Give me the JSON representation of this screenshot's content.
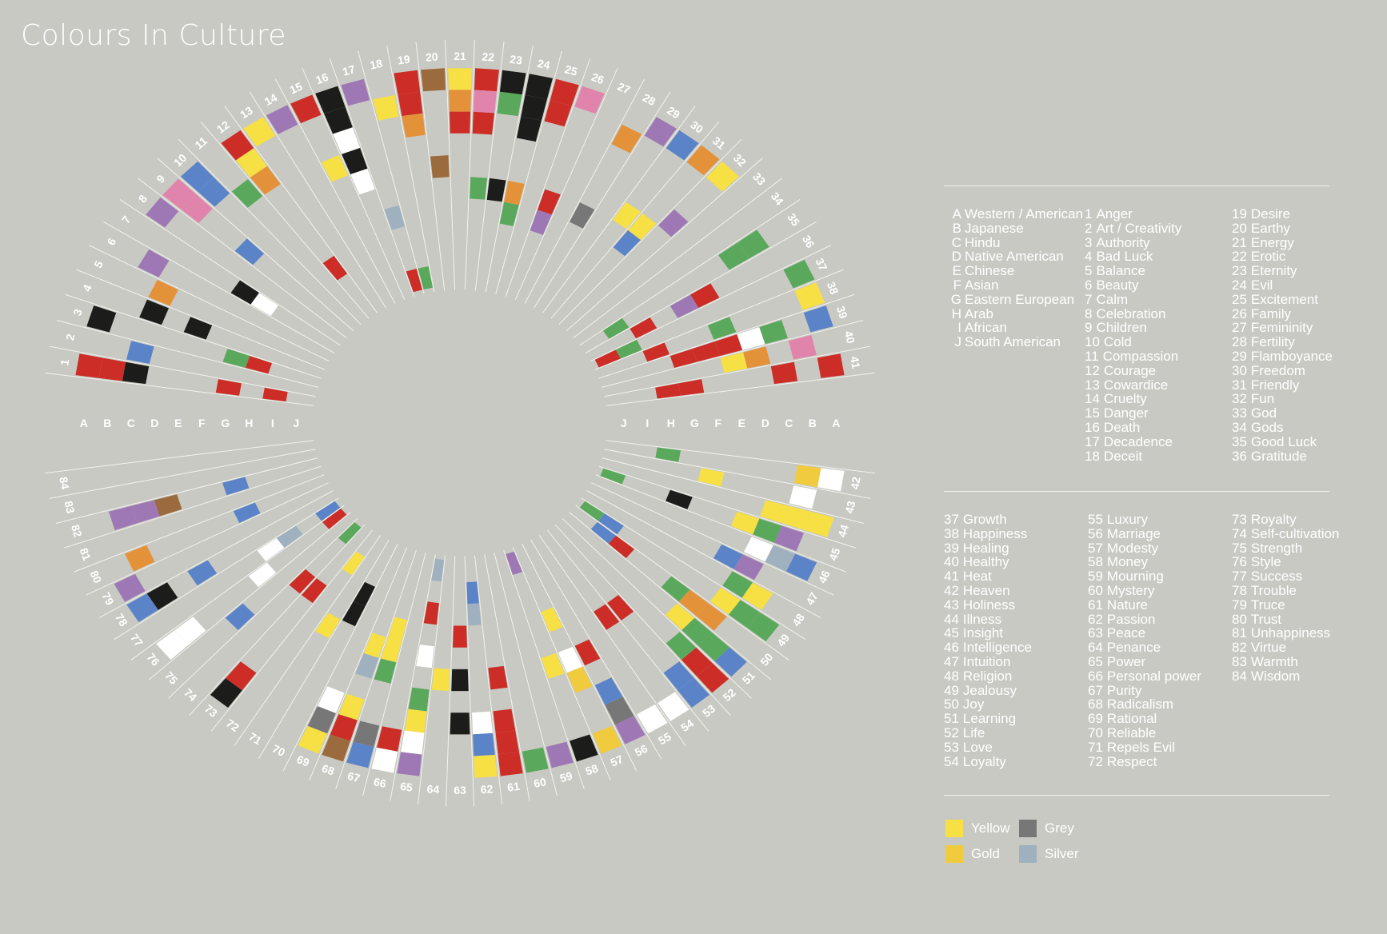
{
  "title": "Colours In Culture",
  "colors": {
    "red": "#cc2d27",
    "yellow": "#f6e044",
    "gold": "#f0cb3d",
    "orange": "#e4923a",
    "black": "#1c1c1a",
    "white": "#ffffff",
    "purple": "#9d78b4",
    "blue": "#5b84c8",
    "green": "#5aa85c",
    "pink": "#e084ac",
    "brown": "#9b6b3d",
    "grey": "#777777",
    "silver": "#9fb0bf"
  },
  "cultures": [
    {
      "code": "A",
      "name": "Western / American"
    },
    {
      "code": "B",
      "name": "Japanese"
    },
    {
      "code": "C",
      "name": "Hindu"
    },
    {
      "code": "D",
      "name": "Native American"
    },
    {
      "code": "E",
      "name": "Chinese"
    },
    {
      "code": "F",
      "name": "Asian"
    },
    {
      "code": "G",
      "name": "Eastern European"
    },
    {
      "code": "H",
      "name": "Arab"
    },
    {
      "code": "I",
      "name": "African"
    },
    {
      "code": "J",
      "name": "South American"
    }
  ],
  "meanings": [
    "Anger",
    "Art / Creativity",
    "Authority",
    "Bad Luck",
    "Balance",
    "Beauty",
    "Calm",
    "Celebration",
    "Children",
    "Cold",
    "Compassion",
    "Courage",
    "Cowardice",
    "Cruelty",
    "Danger",
    "Death",
    "Decadence",
    "Deceit",
    "Desire",
    "Earthy",
    "Energy",
    "Erotic",
    "Eternity",
    "Evil",
    "Excitement",
    "Family",
    "Femininity",
    "Fertility",
    "Flamboyance",
    "Freedom",
    "Friendly",
    "Fun",
    "God",
    "Gods",
    "Good Luck",
    "Gratitude",
    "Growth",
    "Happiness",
    "Healing",
    "Healthy",
    "Heat",
    "Heaven",
    "Holiness",
    "Illness",
    "Insight",
    "Intelligence",
    "Intuition",
    "Religion",
    "Jealousy",
    "Joy",
    "Learning",
    "Life",
    "Love",
    "Loyalty",
    "Luxury",
    "Marriage",
    "Modesty",
    "Money",
    "Mourning",
    "Mystery",
    "Nature",
    "Passion",
    "Peace",
    "Penance",
    "Power",
    "Personal power",
    "Purity",
    "Radicalism",
    "Rational",
    "Reliable",
    "Repels Evil",
    "Respect",
    "Royalty",
    "Self-cultivation",
    "Strength",
    "Style",
    "Success",
    "Trouble",
    "Truce",
    "Trust",
    "Unhappiness",
    "Virtue",
    "Warmth",
    "Wisdom"
  ],
  "color_legend": [
    {
      "label": "Yellow",
      "color": "#f6e044"
    },
    {
      "label": "Grey",
      "color": "#777777"
    },
    {
      "label": "Gold",
      "color": "#f0cb3d"
    },
    {
      "label": "Silver",
      "color": "#9fb0bf"
    }
  ],
  "cells": [
    {
      "m": 1,
      "c": "A",
      "col": "red"
    },
    {
      "m": 1,
      "c": "B",
      "col": "red"
    },
    {
      "m": 1,
      "c": "C",
      "col": "black"
    },
    {
      "m": 1,
      "c": "G",
      "col": "red"
    },
    {
      "m": 1,
      "c": "I",
      "col": "red"
    },
    {
      "m": 2,
      "c": "C",
      "col": "blue"
    },
    {
      "m": 3,
      "c": "A",
      "col": "black"
    },
    {
      "m": 3,
      "c": "G",
      "col": "green"
    },
    {
      "m": 3,
      "c": "H",
      "col": "red"
    },
    {
      "m": 4,
      "c": "C",
      "col": "black"
    },
    {
      "m": 4,
      "c": "E",
      "col": "black"
    },
    {
      "m": 5,
      "c": "C",
      "col": "orange"
    },
    {
      "m": 6,
      "c": "B",
      "col": "purple"
    },
    {
      "m": 7,
      "c": "F",
      "col": "black"
    },
    {
      "m": 7,
      "c": "G",
      "col": "white"
    },
    {
      "m": 8,
      "c": "A",
      "col": "purple"
    },
    {
      "m": 9,
      "c": "A",
      "col": "pink"
    },
    {
      "m": 9,
      "c": "B",
      "col": "pink"
    },
    {
      "m": 9,
      "c": "E",
      "col": "blue"
    },
    {
      "m": 10,
      "c": "A",
      "col": "blue"
    },
    {
      "m": 10,
      "c": "B",
      "col": "blue"
    },
    {
      "m": 11,
      "c": "C",
      "col": "green"
    },
    {
      "m": 12,
      "c": "A",
      "col": "red"
    },
    {
      "m": 12,
      "c": "B",
      "col": "yellow"
    },
    {
      "m": 12,
      "c": "C",
      "col": "orange"
    },
    {
      "m": 12,
      "c": "H",
      "col": "red"
    },
    {
      "m": 13,
      "c": "A",
      "col": "yellow"
    },
    {
      "m": 14,
      "c": "A",
      "col": "purple"
    },
    {
      "m": 15,
      "c": "A",
      "col": "red"
    },
    {
      "m": 15,
      "c": "D",
      "col": "yellow"
    },
    {
      "m": 16,
      "c": "A",
      "col": "black"
    },
    {
      "m": 16,
      "c": "B",
      "col": "black"
    },
    {
      "m": 16,
      "c": "C",
      "col": "white"
    },
    {
      "m": 16,
      "c": "D",
      "col": "black"
    },
    {
      "m": 16,
      "c": "E",
      "col": "white"
    },
    {
      "m": 17,
      "c": "A",
      "col": "purple"
    },
    {
      "m": 17,
      "c": "G",
      "col": "silver"
    },
    {
      "m": 17,
      "c": "J",
      "col": "red"
    },
    {
      "m": 18,
      "c": "B",
      "col": "yellow"
    },
    {
      "m": 18,
      "c": "J",
      "col": "green"
    },
    {
      "m": 19,
      "c": "A",
      "col": "red"
    },
    {
      "m": 19,
      "c": "B",
      "col": "red"
    },
    {
      "m": 19,
      "c": "C",
      "col": "orange"
    },
    {
      "m": 20,
      "c": "A",
      "col": "brown"
    },
    {
      "m": 20,
      "c": "E",
      "col": "brown"
    },
    {
      "m": 21,
      "c": "A",
      "col": "yellow"
    },
    {
      "m": 21,
      "c": "B",
      "col": "orange"
    },
    {
      "m": 21,
      "c": "C",
      "col": "red"
    },
    {
      "m": 22,
      "c": "A",
      "col": "red"
    },
    {
      "m": 22,
      "c": "B",
      "col": "pink"
    },
    {
      "m": 22,
      "c": "C",
      "col": "red"
    },
    {
      "m": 22,
      "c": "F",
      "col": "green"
    },
    {
      "m": 23,
      "c": "A",
      "col": "black"
    },
    {
      "m": 23,
      "c": "B",
      "col": "green"
    },
    {
      "m": 23,
      "c": "F",
      "col": "black"
    },
    {
      "m": 24,
      "c": "A",
      "col": "black"
    },
    {
      "m": 24,
      "c": "B",
      "col": "black"
    },
    {
      "m": 24,
      "c": "C",
      "col": "black"
    },
    {
      "m": 24,
      "c": "F",
      "col": "orange"
    },
    {
      "m": 24,
      "c": "G",
      "col": "green"
    },
    {
      "m": 25,
      "c": "A",
      "col": "red"
    },
    {
      "m": 25,
      "c": "B",
      "col": "red"
    },
    {
      "m": 26,
      "c": "A",
      "col": "pink"
    },
    {
      "m": 26,
      "c": "F",
      "col": "red"
    },
    {
      "m": 26,
      "c": "G",
      "col": "purple"
    },
    {
      "m": 28,
      "c": "B",
      "col": "orange"
    },
    {
      "m": 28,
      "c": "F",
      "col": "grey"
    },
    {
      "m": 29,
      "c": "A",
      "col": "purple"
    },
    {
      "m": 30,
      "c": "A",
      "col": "blue"
    },
    {
      "m": 30,
      "c": "E",
      "col": "yellow"
    },
    {
      "m": 31,
      "c": "A",
      "col": "orange"
    },
    {
      "m": 31,
      "c": "E",
      "col": "yellow"
    },
    {
      "m": 31,
      "c": "F",
      "col": "blue"
    },
    {
      "m": 32,
      "c": "A",
      "col": "yellow"
    },
    {
      "m": 32,
      "c": "D",
      "col": "purple"
    },
    {
      "m": 35,
      "c": "B",
      "col": "green"
    },
    {
      "m": 35,
      "c": "C",
      "col": "green"
    },
    {
      "m": 35,
      "c": "I",
      "col": "green"
    },
    {
      "m": 36,
      "c": "E",
      "col": "red"
    },
    {
      "m": 36,
      "c": "F",
      "col": "purple"
    },
    {
      "m": 36,
      "c": "H",
      "col": "red"
    },
    {
      "m": 37,
      "c": "A",
      "col": "green"
    },
    {
      "m": 37,
      "c": "I",
      "col": "green"
    },
    {
      "m": 37,
      "c": "J",
      "col": "red"
    },
    {
      "m": 38,
      "c": "A",
      "col": "yellow"
    },
    {
      "m": 38,
      "c": "E",
      "col": "green"
    },
    {
      "m": 38,
      "c": "H",
      "col": "red"
    },
    {
      "m": 39,
      "c": "A",
      "col": "blue"
    },
    {
      "m": 39,
      "c": "C",
      "col": "green"
    },
    {
      "m": 39,
      "c": "D",
      "col": "white"
    },
    {
      "m": 39,
      "c": "E",
      "col": "red"
    },
    {
      "m": 39,
      "c": "F",
      "col": "red"
    },
    {
      "m": 39,
      "c": "G",
      "col": "red"
    },
    {
      "m": 40,
      "c": "B",
      "col": "pink"
    },
    {
      "m": 40,
      "c": "D",
      "col": "orange"
    },
    {
      "m": 40,
      "c": "E",
      "col": "yellow"
    },
    {
      "m": 41,
      "c": "A",
      "col": "red"
    },
    {
      "m": 41,
      "c": "C",
      "col": "red"
    },
    {
      "m": 41,
      "c": "G",
      "col": "red"
    },
    {
      "m": 41,
      "c": "H",
      "col": "red"
    },
    {
      "m": 42,
      "c": "A",
      "col": "white"
    },
    {
      "m": 42,
      "c": "B",
      "col": "gold"
    },
    {
      "m": 42,
      "c": "H",
      "col": "green"
    },
    {
      "m": 43,
      "c": "B",
      "col": "white"
    },
    {
      "m": 43,
      "c": "F",
      "col": "yellow"
    },
    {
      "m": 44,
      "c": "A",
      "col": "yellow"
    },
    {
      "m": 44,
      "c": "B",
      "col": "yellow"
    },
    {
      "m": 44,
      "c": "C",
      "col": "yellow"
    },
    {
      "m": 45,
      "c": "B",
      "col": "purple"
    },
    {
      "m": 45,
      "c": "C",
      "col": "green"
    },
    {
      "m": 45,
      "c": "D",
      "col": "yellow"
    },
    {
      "m": 45,
      "c": "G",
      "col": "black"
    },
    {
      "m": 45,
      "c": "J",
      "col": "green"
    },
    {
      "m": 46,
      "c": "A",
      "col": "blue"
    },
    {
      "m": 46,
      "c": "B",
      "col": "silver"
    },
    {
      "m": 46,
      "c": "C",
      "col": "white"
    },
    {
      "m": 47,
      "c": "C",
      "col": "purple"
    },
    {
      "m": 47,
      "c": "D",
      "col": "blue"
    },
    {
      "m": 48,
      "c": "B",
      "col": "yellow"
    },
    {
      "m": 48,
      "c": "C",
      "col": "green"
    },
    {
      "m": 49,
      "c": "A",
      "col": "green"
    },
    {
      "m": 49,
      "c": "B",
      "col": "green"
    },
    {
      "m": 49,
      "c": "C",
      "col": "yellow"
    },
    {
      "m": 49,
      "c": "I",
      "col": "blue"
    },
    {
      "m": 49,
      "c": "J",
      "col": "green"
    },
    {
      "m": 50,
      "c": "C",
      "col": "orange"
    },
    {
      "m": 50,
      "c": "D",
      "col": "orange"
    },
    {
      "m": 50,
      "c": "E",
      "col": "green"
    },
    {
      "m": 50,
      "c": "H",
      "col": "red"
    },
    {
      "m": 50,
      "c": "I",
      "col": "blue"
    },
    {
      "m": 51,
      "c": "A",
      "col": "blue"
    },
    {
      "m": 51,
      "c": "B",
      "col": "green"
    },
    {
      "m": 51,
      "c": "C",
      "col": "green"
    },
    {
      "m": 51,
      "c": "D",
      "col": "yellow"
    },
    {
      "m": 52,
      "c": "A",
      "col": "red"
    },
    {
      "m": 52,
      "c": "B",
      "col": "red"
    },
    {
      "m": 52,
      "c": "C",
      "col": "green"
    },
    {
      "m": 53,
      "c": "A",
      "col": "blue"
    },
    {
      "m": 53,
      "c": "B",
      "col": "blue"
    },
    {
      "m": 53,
      "c": "F",
      "col": "red"
    },
    {
      "m": 54,
      "c": "A",
      "col": "white"
    },
    {
      "m": 54,
      "c": "F",
      "col": "red"
    },
    {
      "m": 55,
      "c": "A",
      "col": "white"
    },
    {
      "m": 56,
      "c": "A",
      "col": "purple"
    },
    {
      "m": 56,
      "c": "B",
      "col": "grey"
    },
    {
      "m": 56,
      "c": "C",
      "col": "blue"
    },
    {
      "m": 56,
      "c": "E",
      "col": "red"
    },
    {
      "m": 57,
      "c": "A",
      "col": "gold"
    },
    {
      "m": 57,
      "c": "D",
      "col": "gold"
    },
    {
      "m": 57,
      "c": "E",
      "col": "white"
    },
    {
      "m": 57,
      "c": "G",
      "col": "yellow"
    },
    {
      "m": 58,
      "c": "A",
      "col": "black"
    },
    {
      "m": 58,
      "c": "E",
      "col": "yellow"
    },
    {
      "m": 58,
      "c": "J",
      "col": "purple"
    },
    {
      "m": 59,
      "c": "A",
      "col": "purple"
    },
    {
      "m": 60,
      "c": "A",
      "col": "green"
    },
    {
      "m": 61,
      "c": "A",
      "col": "red"
    },
    {
      "m": 61,
      "c": "B",
      "col": "red"
    },
    {
      "m": 61,
      "c": "C",
      "col": "red"
    },
    {
      "m": 61,
      "c": "E",
      "col": "red"
    },
    {
      "m": 62,
      "c": "A",
      "col": "yellow"
    },
    {
      "m": 62,
      "c": "B",
      "col": "blue"
    },
    {
      "m": 62,
      "c": "C",
      "col": "white"
    },
    {
      "m": 62,
      "c": "H",
      "col": "silver"
    },
    {
      "m": 62,
      "c": "I",
      "col": "blue"
    },
    {
      "m": 63,
      "c": "C",
      "col": "black"
    },
    {
      "m": 63,
      "c": "E",
      "col": "black"
    },
    {
      "m": 63,
      "c": "G",
      "col": "red"
    },
    {
      "m": 64,
      "c": "E",
      "col": "yellow"
    },
    {
      "m": 65,
      "c": "A",
      "col": "purple"
    },
    {
      "m": 65,
      "c": "B",
      "col": "white"
    },
    {
      "m": 65,
      "c": "C",
      "col": "yellow"
    },
    {
      "m": 65,
      "c": "D",
      "col": "green"
    },
    {
      "m": 65,
      "c": "F",
      "col": "white"
    },
    {
      "m": 65,
      "c": "H",
      "col": "red"
    },
    {
      "m": 65,
      "c": "J",
      "col": "silver"
    },
    {
      "m": 66,
      "c": "A",
      "col": "white"
    },
    {
      "m": 66,
      "c": "B",
      "col": "red"
    },
    {
      "m": 67,
      "c": "A",
      "col": "blue"
    },
    {
      "m": 67,
      "c": "B",
      "col": "grey"
    },
    {
      "m": 67,
      "c": "E",
      "col": "green"
    },
    {
      "m": 67,
      "c": "F",
      "col": "yellow"
    },
    {
      "m": 67,
      "c": "G",
      "col": "yellow"
    },
    {
      "m": 68,
      "c": "A",
      "col": "brown"
    },
    {
      "m": 68,
      "c": "B",
      "col": "red"
    },
    {
      "m": 68,
      "c": "C",
      "col": "yellow"
    },
    {
      "m": 68,
      "c": "E",
      "col": "silver"
    },
    {
      "m": 68,
      "c": "F",
      "col": "yellow"
    },
    {
      "m": 69,
      "c": "A",
      "col": "yellow"
    },
    {
      "m": 69,
      "c": "B",
      "col": "grey"
    },
    {
      "m": 69,
      "c": "C",
      "col": "white"
    },
    {
      "m": 70,
      "c": "G",
      "col": "black"
    },
    {
      "m": 70,
      "c": "H",
      "col": "black"
    },
    {
      "m": 71,
      "c": "F",
      "col": "yellow"
    },
    {
      "m": 72,
      "c": "I",
      "col": "yellow"
    },
    {
      "m": 73,
      "c": "A",
      "col": "black"
    },
    {
      "m": 73,
      "c": "B",
      "col": "red"
    },
    {
      "m": 73,
      "c": "G",
      "col": "red"
    },
    {
      "m": 74,
      "c": "G",
      "col": "red"
    },
    {
      "m": 74,
      "c": "J",
      "col": "green"
    },
    {
      "m": 75,
      "c": "D",
      "col": "blue"
    },
    {
      "m": 76,
      "c": "A",
      "col": "white"
    },
    {
      "m": 76,
      "c": "B",
      "col": "white"
    },
    {
      "m": 76,
      "c": "F",
      "col": "white"
    },
    {
      "m": 76,
      "c": "J",
      "col": "red"
    },
    {
      "m": 77,
      "c": "G",
      "col": "white"
    },
    {
      "m": 77,
      "c": "H",
      "col": "silver"
    },
    {
      "m": 77,
      "c": "J",
      "col": "blue"
    },
    {
      "m": 78,
      "c": "A",
      "col": "blue"
    },
    {
      "m": 78,
      "c": "B",
      "col": "black"
    },
    {
      "m": 78,
      "c": "D",
      "col": "blue"
    },
    {
      "m": 79,
      "c": "A",
      "col": "purple"
    },
    {
      "m": 80,
      "c": "B",
      "col": "orange"
    },
    {
      "m": 80,
      "c": "G",
      "col": "blue"
    },
    {
      "m": 82,
      "c": "B",
      "col": "purple"
    },
    {
      "m": 82,
      "c": "C",
      "col": "purple"
    },
    {
      "m": 82,
      "c": "D",
      "col": "brown"
    },
    {
      "m": 82,
      "c": "G",
      "col": "blue"
    }
  ]
}
